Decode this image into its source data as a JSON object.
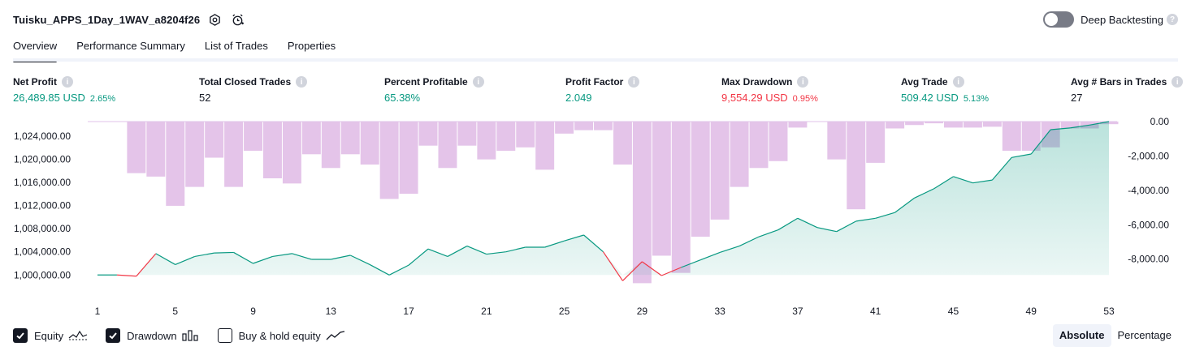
{
  "header": {
    "strategy_name": "Tuisku_APPS_1Day_1WAV_a8204f26",
    "settings_icon": "settings-hexagon-icon",
    "alert_icon": "add-alert-clock-icon",
    "deep_backtesting_label": "Deep Backtesting",
    "deep_backtesting_enabled": false,
    "help_icon": "question-icon"
  },
  "tabs": [
    {
      "label": "Overview",
      "active": true
    },
    {
      "label": "Performance Summary",
      "active": false
    },
    {
      "label": "List of Trades",
      "active": false
    },
    {
      "label": "Properties",
      "active": false
    }
  ],
  "metrics": [
    {
      "label": "Net Profit",
      "value": "26,489.85 USD",
      "pct": "2.65%",
      "color": "#089981"
    },
    {
      "label": "Total Closed Trades",
      "value": "52",
      "pct": "",
      "color": "#131722"
    },
    {
      "label": "Percent Profitable",
      "value": "65.38%",
      "pct": "",
      "color": "#089981"
    },
    {
      "label": "Profit Factor",
      "value": "2.049",
      "pct": "",
      "color": "#089981"
    },
    {
      "label": "Max Drawdown",
      "value": "9,554.29 USD",
      "pct": "0.95%",
      "color": "#f23645"
    },
    {
      "label": "Avg Trade",
      "value": "509.42 USD",
      "pct": "5.13%",
      "color": "#089981"
    },
    {
      "label": "Avg # Bars in Trades",
      "value": "27",
      "pct": "",
      "color": "#131722"
    }
  ],
  "chart_data": {
    "type": "area",
    "x": [
      1,
      2,
      3,
      4,
      5,
      6,
      7,
      8,
      9,
      10,
      11,
      12,
      13,
      14,
      15,
      16,
      17,
      18,
      19,
      20,
      21,
      22,
      23,
      24,
      25,
      26,
      27,
      28,
      29,
      30,
      31,
      32,
      33,
      34,
      35,
      36,
      37,
      38,
      39,
      40,
      41,
      42,
      43,
      44,
      45,
      46,
      47,
      48,
      49,
      50,
      51,
      52,
      53
    ],
    "x_ticks": [
      1,
      5,
      9,
      13,
      17,
      21,
      25,
      29,
      33,
      37,
      41,
      45,
      49,
      53
    ],
    "left_axis": {
      "ticks": [
        1000000,
        1004000,
        1008000,
        1012000,
        1016000,
        1020000,
        1024000
      ],
      "tick_labels": [
        "1,000,000.00",
        "1,004,000.00",
        "1,008,000.00",
        "1,012,000.00",
        "1,016,000.00",
        "1,020,000.00",
        "1,024,000.00"
      ],
      "ylim": [
        998500,
        1026500
      ]
    },
    "right_axis": {
      "ticks": [
        0,
        -2000,
        -4000,
        -6000,
        -8000
      ],
      "tick_labels": [
        "0.00",
        "-2,000.00",
        "-4,000.00",
        "-6,000.00",
        "-8,000.00"
      ],
      "ylim": [
        -9900,
        0
      ]
    },
    "series": [
      {
        "name": "Equity",
        "axis": "left",
        "color": "#089981",
        "values": [
          1000000,
          1000000,
          999800,
          1003700,
          1001800,
          1003200,
          1003800,
          1003900,
          1002000,
          1003200,
          1003700,
          1002700,
          1002700,
          1003400,
          1001800,
          1000000,
          1001700,
          1004500,
          1003200,
          1005000,
          1003600,
          1004000,
          1004800,
          1004800,
          1005900,
          1006900,
          1004000,
          999000,
          1002300,
          999900,
          1001300,
          1002600,
          1003900,
          1005000,
          1006600,
          1007800,
          1009800,
          1008200,
          1007500,
          1009300,
          1009800,
          1010800,
          1013300,
          1014900,
          1017000,
          1015900,
          1016400,
          1020300,
          1020900,
          1025100,
          1025400,
          1025900,
          1026500
        ]
      },
      {
        "name": "Drawdown",
        "axis": "right",
        "color": "#e1bee7",
        "values": [
          0,
          0,
          -3000,
          -3200,
          -4900,
          -3800,
          -2100,
          -3800,
          -1700,
          -3300,
          -3600,
          -1900,
          -2700,
          -1900,
          -2500,
          -4500,
          -4200,
          -1400,
          -2700,
          -1400,
          -2200,
          -1700,
          -1500,
          -2800,
          -700,
          -500,
          -500,
          -2500,
          -9400,
          -7800,
          -8800,
          -6700,
          -5700,
          -3800,
          -2700,
          -2300,
          -350,
          0,
          -2200,
          -5100,
          -2400,
          -400,
          -200,
          -100,
          -350,
          -350,
          -300,
          -1700,
          -1700,
          -1500,
          -400,
          -400,
          -150
        ]
      }
    ]
  },
  "legend": {
    "equity": {
      "label": "Equity",
      "checked": true,
      "icon": "equity-line-icon"
    },
    "drawdown": {
      "label": "Drawdown",
      "checked": true,
      "icon": "drawdown-bars-icon"
    },
    "buyhold": {
      "label": "Buy & hold equity",
      "checked": false,
      "icon": "buy-hold-line-icon"
    }
  },
  "modes": {
    "absolute": "Absolute",
    "percentage": "Percentage",
    "active": "absolute"
  }
}
